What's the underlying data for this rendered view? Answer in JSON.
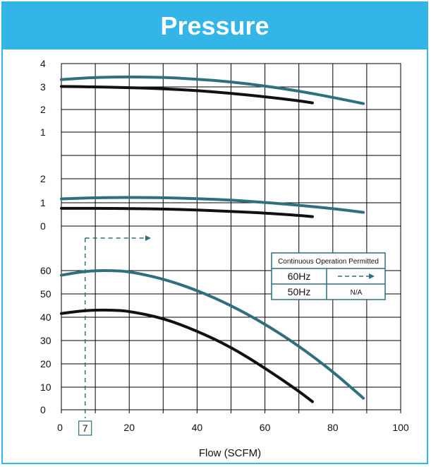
{
  "header": {
    "title": "Pressure"
  },
  "colors": {
    "header_bg": "#33b5e8",
    "series_60hz": "#2f6f7e",
    "series_50hz": "#111111"
  },
  "chart_data": {
    "type": "line",
    "xlabel": "Flow (SCFM)",
    "xlim": [
      0,
      100
    ],
    "x_ticks": [
      "0",
      "20",
      "40",
      "60",
      "80",
      "100"
    ],
    "x_marker": {
      "label": "7",
      "x": 7
    },
    "panels": [
      {
        "id": "top",
        "y_ticks": [
          {
            "label": "4",
            "value": 4
          },
          {
            "label": "3",
            "value": 3
          },
          {
            "label": "2",
            "value": 2
          },
          {
            "label": "1",
            "value": 1
          }
        ],
        "series": [
          {
            "freq": "60Hz",
            "x": [
              0,
              10,
              20,
              30,
              40,
              50,
              60,
              70,
              80,
              89
            ],
            "y": [
              3.3,
              3.4,
              3.42,
              3.4,
              3.32,
              3.2,
              3.02,
              2.8,
              2.52,
              2.25
            ]
          },
          {
            "freq": "50Hz",
            "x": [
              0,
              10,
              20,
              30,
              40,
              50,
              60,
              70,
              74
            ],
            "y": [
              3.0,
              2.98,
              2.95,
              2.9,
              2.82,
              2.7,
              2.55,
              2.37,
              2.28
            ]
          }
        ]
      },
      {
        "id": "middle",
        "y_ticks": [
          {
            "label": "2",
            "value": 2
          },
          {
            "label": "1",
            "value": 1
          },
          {
            "label": "0",
            "value": 0
          }
        ],
        "series": [
          {
            "freq": "60Hz",
            "x": [
              0,
              10,
              20,
              30,
              40,
              50,
              60,
              70,
              80,
              89
            ],
            "y": [
              1.15,
              1.2,
              1.21,
              1.2,
              1.16,
              1.1,
              1.0,
              0.88,
              0.74,
              0.58
            ]
          },
          {
            "freq": "50Hz",
            "x": [
              0,
              10,
              20,
              30,
              40,
              50,
              60,
              70,
              74
            ],
            "y": [
              0.75,
              0.75,
              0.74,
              0.72,
              0.68,
              0.62,
              0.55,
              0.45,
              0.4
            ]
          }
        ]
      },
      {
        "id": "bottom",
        "y_ticks": [
          {
            "label": "60",
            "value": 60
          },
          {
            "label": "50",
            "value": 50
          },
          {
            "label": "40",
            "value": 40
          },
          {
            "label": "30",
            "value": 30
          },
          {
            "label": "20",
            "value": 20
          },
          {
            "label": "10",
            "value": 10
          },
          {
            "label": "0",
            "value": 0
          }
        ],
        "series": [
          {
            "freq": "60Hz",
            "x": [
              0,
              5,
              10,
              15,
              20,
              30,
              40,
              50,
              60,
              70,
              80,
              89
            ],
            "y": [
              58,
              59.3,
              60,
              60,
              59.6,
              56.5,
              51.5,
              45,
              37,
              27.5,
              16.5,
              5
            ]
          },
          {
            "freq": "50Hz",
            "x": [
              0,
              5,
              10,
              15,
              20,
              30,
              40,
              50,
              60,
              70,
              74
            ],
            "y": [
              41.5,
              42.5,
              43,
              43,
              42.5,
              39.5,
              34,
              27,
              18,
              8,
              3.5
            ]
          }
        ]
      }
    ],
    "legend": {
      "placement": "right",
      "header": "Continuous  Operation Permitted",
      "rows": [
        {
          "freq": "60Hz",
          "value": "- - - ▸"
        },
        {
          "freq": "50Hz",
          "value": "N/A"
        }
      ]
    }
  }
}
